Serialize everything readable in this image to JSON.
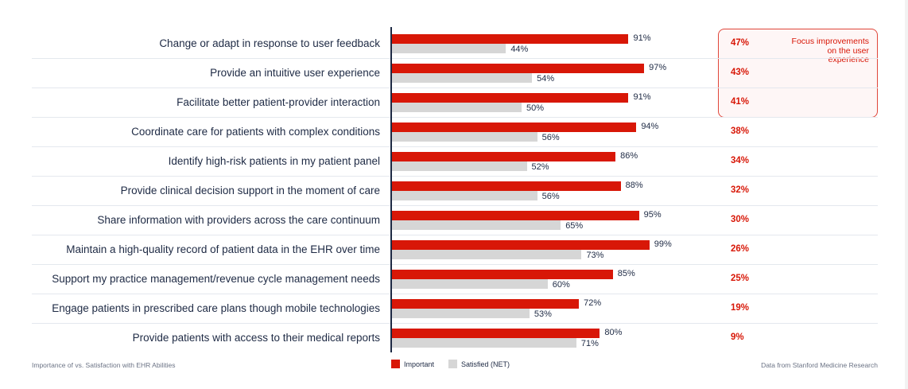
{
  "chart_data": {
    "type": "bar",
    "orientation": "horizontal",
    "title": "Importance of vs. Satisfaction with EHR Abilities",
    "source": "Data from Stanford Medicine Research",
    "xlim": [
      0,
      100
    ],
    "grid": false,
    "legend_placement": "bottom",
    "categories": [
      "Change or adapt in response to user feedback",
      "Provide an intuitive user experience",
      "Facilitate better patient-provider interaction",
      "Coordinate care for patients with complex conditions",
      "Identify high-risk patients in my patient panel",
      "Provide clinical decision support in the moment of care",
      "Share information with providers across the care continuum",
      "Maintain a high-quality record of patient data in the EHR over time",
      "Support my practice management/revenue cycle management needs",
      "Engage patients in prescribed care plans though mobile technologies",
      "Provide patients with access to their medical reports"
    ],
    "series": [
      {
        "name": "Important",
        "color": "#d81707",
        "values": [
          91,
          97,
          91,
          94,
          86,
          88,
          95,
          99,
          85,
          72,
          80
        ]
      },
      {
        "name": "Satisfied (NET)",
        "color": "#d6d6d6",
        "values": [
          44,
          54,
          50,
          56,
          52,
          56,
          65,
          73,
          60,
          53,
          71
        ]
      }
    ],
    "gap_values": [
      47,
      43,
      41,
      38,
      34,
      32,
      30,
      26,
      25,
      19,
      9
    ],
    "value_suffix": "%",
    "annotation": {
      "text": "Focus improvements on the user experience",
      "rows_highlighted": 3,
      "color": "#d81707"
    }
  }
}
